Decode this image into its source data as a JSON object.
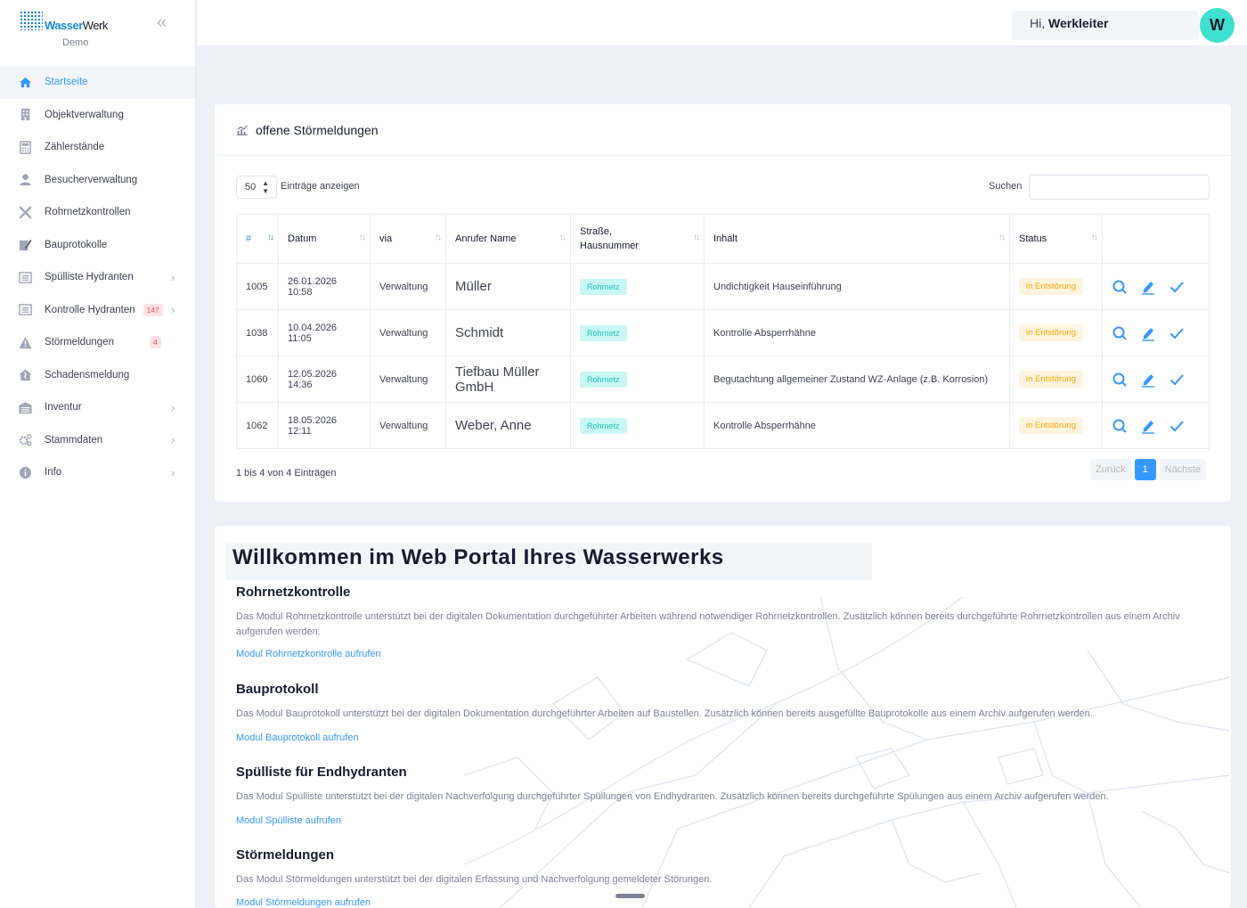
{
  "brand": {
    "word1": "Wasser",
    "word2": "Werk",
    "subtitle": "Demo"
  },
  "sidebar": {
    "items": [
      {
        "label": "Startseite",
        "icon": "home-icon",
        "active": true
      },
      {
        "label": "Objektverwaltung",
        "icon": "building-icon"
      },
      {
        "label": "Zählerstände",
        "icon": "calculator-icon"
      },
      {
        "label": "Besucherverwaltung",
        "icon": "user-icon"
      },
      {
        "label": "Rohrnetzkontrollen",
        "icon": "tools-icon"
      },
      {
        "label": "Bauprotokolle",
        "icon": "edit-doc-icon"
      },
      {
        "label": "Spülliste Hydranten",
        "icon": "list-icon",
        "chevron": true
      },
      {
        "label": "Kontrolle Hydranten",
        "icon": "list-icon",
        "badge": "147",
        "chevron": true
      },
      {
        "label": "Störmeldungen",
        "icon": "warning-icon",
        "badge": "4"
      },
      {
        "label": "Schadensmeldung",
        "icon": "house-damage-icon"
      },
      {
        "label": "Inventur",
        "icon": "warehouse-icon",
        "chevron": true
      },
      {
        "label": "Stammdaten",
        "icon": "cogs-icon",
        "chevron": true
      },
      {
        "label": "Info",
        "icon": "info-icon",
        "chevron": true
      }
    ]
  },
  "topbar": {
    "greeting": "Hi,",
    "username": "Werkleiter",
    "avatar_letter": "W"
  },
  "table_card": {
    "title": "offene Störmeldungen",
    "length_value": "50",
    "length_label": "Einträge anzeigen",
    "search_label": "Suchen",
    "columns": [
      "#",
      "Datum",
      "via",
      "Anrufer Name",
      "Straße, Hausnummer",
      "Inhalt",
      "Status"
    ],
    "rows": [
      {
        "id": "1005",
        "date": "26.01.2026",
        "time": "10:58",
        "via": "Verwaltung",
        "name": "Müller",
        "street": "Rohrnetz",
        "content": "Undichtigkeit Hauseinführung",
        "status": "in Entstörung"
      },
      {
        "id": "1038",
        "date": "10.04.2026",
        "time": "11:05",
        "via": "Verwaltung",
        "name": "Schmidt",
        "street": "Rohrnetz",
        "content": "Kontrolle Absperrhähne",
        "status": "in Entstörung"
      },
      {
        "id": "1060",
        "date": "12.05.2026",
        "time": "14:36",
        "via": "Verwaltung",
        "name": "Tiefbau Müller GmbH",
        "street": "Rohrnetz",
        "content": "Begutachtung allgemeiner Zustand WZ-Anlage (z.B. Korrosion)",
        "status": "in Entstörung"
      },
      {
        "id": "1062",
        "date": "18.05.2026",
        "time": "12:11",
        "via": "Verwaltung",
        "name": "Weber, Anne",
        "street": "Rohrnetz",
        "content": "Kontrolle Absperrhähne",
        "status": "in Entstörung"
      }
    ],
    "info": "1 bis 4 von 4 Einträgen",
    "pager": {
      "prev": "Zurück",
      "current": "1",
      "next": "Nächste"
    }
  },
  "welcome": {
    "title": "Willkommen im Web Portal Ihres Wasserwerks",
    "sections": [
      {
        "heading": "Rohrnetzkontrolle",
        "text": "Das Modul Rohrnetzkontrolle unterstützt bei der digitalen Dokumentation durchgeführter Arbeiten während notwendiger Rohrnetzkontrollen. Zusätzlich können bereits durchgeführte Rohrnetzkontrollen aus einem Archiv aufgerufen werden.",
        "link": "Modul Rohrnetzkontrolle aufrufen"
      },
      {
        "heading": "Bauprotokoll",
        "text": "Das Modul Bauprotokoll unterstützt bei der digitalen Dokumentation durchgeführter Arbeiten auf Baustellen. Zusätzlich können bereits ausgefüllte Bauprotokolle aus einem Archiv aufgerufen werden.",
        "link": "Modul Bauprotokoll aufrufen"
      },
      {
        "heading": "Spülliste für Endhydranten",
        "text": "Das Modul Spülliste unterstützt bei der digitalen Nachverfolgung durchgeführter Spüllungen von Endhydranten. Zusätzlich können bereits durchgeführte Spülungen aus einem Archiv aufgerufen werden.",
        "link": "Modul Spülliste aufrufen"
      },
      {
        "heading": "Störmeldungen",
        "text": "Das Modul Störmeldungen unterstützt bei der digitalen Erfassung und Nachverfolgung gemeldeter Störungen.",
        "link": "Modul Störmeldungen aufrufen"
      }
    ]
  },
  "colors": {
    "primary": "#3699ff",
    "teal": "#1bc5bd",
    "warning": "#ffa800",
    "danger": "#f64e60"
  }
}
